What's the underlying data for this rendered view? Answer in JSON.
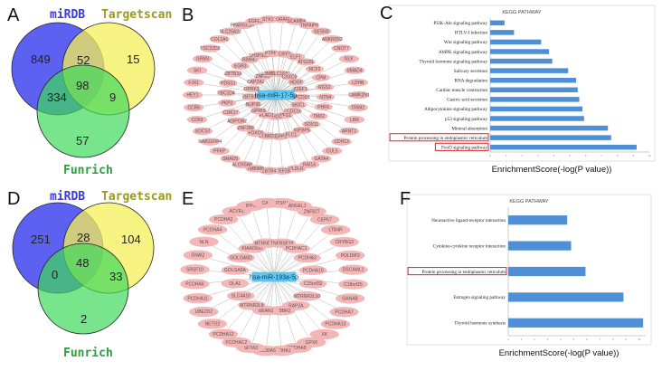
{
  "panels": {
    "A": {
      "label": "A",
      "venn": {
        "set1": "miRDB",
        "set2": "Targetscan",
        "set3": "Funrich",
        "only1": "849",
        "only2": "15",
        "only3": "57",
        "n12": "52",
        "n13": "334",
        "n23": "9",
        "n123": "98",
        "colors": {
          "set1": "#4b50f0",
          "set2": "#f5f05a",
          "set3": "#3fd85a"
        }
      }
    },
    "B": {
      "label": "B",
      "center": "hsa-miR-17-5p",
      "nodes": [
        "APCDD1",
        "SKIC1",
        "CCDC16",
        "WFS1",
        "RHOC",
        "PLAG1",
        "GPRIS",
        "NUP35",
        "ZBTB18",
        "OPRK3",
        "CAPZA2",
        "ZNFX1",
        "L3MBTL3",
        "SLC16A9",
        "CXXC5",
        "HDGF",
        "ZZEF1",
        "NTN4",
        "PHF6",
        "TMX2",
        "SOX11",
        "IGFBP5",
        "KLC1",
        "SGPP2",
        "CYBRD1",
        "FOXO1",
        "ZNF280",
        "ADIPOR2",
        "CDK17",
        "PKP2",
        "TBC1D4",
        "PDSS1",
        "ZBTB33",
        "EGR3",
        "RBM47",
        "SH3PXD2A",
        "PTPN4",
        "CRY2",
        "ELF1",
        "ATG16L",
        "NCF2",
        "CPM",
        "RGS1",
        "CAMK2N1",
        "TRIM2",
        "LBR",
        "ARNT2",
        "CDH13",
        "CUL5",
        "GATA4",
        "RAI14",
        "VLDLR",
        "MEF2B",
        "ZBTB4",
        "TMBIM6",
        "ALOX5AP",
        "SMAD5",
        "PFKP",
        "RAB11FIP4",
        "SOCS7",
        "CD59",
        "CCR6",
        "HEY1",
        "FJX1",
        "SKI",
        "GRM3",
        "TSC22D2",
        "COL1A1",
        "SLC25A22",
        "PPARGC1A",
        "EGFL6",
        "STK11",
        "ORAI2",
        "SCAMP4",
        "TNFAIP8",
        "SESN3",
        "ANKRD52",
        "CNOT7",
        "NLK",
        "SMAD4",
        "LDHB"
      ],
      "colors": {
        "edge": "#9a9a9a",
        "center": "#5bc8f5"
      }
    },
    "C": {
      "label": "C",
      "kegg_title": "KEGG PATHWAY",
      "xlabel": "EnrichmentScore(-log(P value))",
      "highlight_color": "#e02020",
      "bar_color": "#4f8fd6"
    },
    "D": {
      "label": "D",
      "venn": {
        "set1": "miRDB",
        "set2": "Targetscan",
        "set3": "Funrich",
        "only1": "251",
        "only2": "104",
        "only3": "2",
        "n12": "28",
        "n13": "0",
        "n23": "33",
        "n123": "48",
        "colors": {
          "set1": "#4b50f0",
          "set2": "#f5f05a",
          "set3": "#3fd85a"
        }
      }
    },
    "E": {
      "label": "E",
      "center": "hsa-miR-193a-5p",
      "nodes": [
        "C15orf32",
        "MTRNR2L10",
        "RAP2A",
        "GABBR2",
        "BEAN1",
        "MTRNR2L8",
        "SLC4A10",
        "OLA1",
        "GOLGA6A",
        "GOLGA6D",
        "KIAA0100",
        "MTRNR2L1",
        "TNFRSF19",
        "PCDHAC1",
        "PCDHA3",
        "PCDHA10",
        "C18orf25",
        "GANAB",
        "PCDHA7",
        "PCDHA13",
        "XK",
        "GPX8",
        "PCDHA9",
        "PCDHA1",
        "SLC30A5",
        "SFTA3",
        "PCDHAC2",
        "PCDHA12",
        "NETO2",
        "UBE2D2",
        "PCDHA11",
        "PCDHA6",
        "SRSF10",
        "GNAQ",
        "NLN",
        "PCDHA4",
        "PCDHA2",
        "ACVR1",
        "IPPK",
        "CA7",
        "ITSN1",
        "ANGEL1",
        "ZNF827",
        "CEP57",
        "LTB4R",
        "CRYBG3",
        "POLDIP2",
        "DSCAML1"
      ],
      "colors": {
        "edge": "#9a9a9a",
        "center": "#5bc8f5"
      }
    },
    "F": {
      "label": "F",
      "kegg_title": "KEGG PATHWAY",
      "xlabel": "EnrichmentScore(-log(P value))",
      "highlight_color": "#e02020",
      "bar_color": "#4f8fd6"
    }
  },
  "chart_data": [
    {
      "type": "bar",
      "panel": "C",
      "title": "KEGG PATHWAY",
      "xlabel": "EnrichmentScore(-log(P value))",
      "orientation": "horizontal",
      "categories": [
        "PI3K-Akt signaling pathway",
        "HTLV-I infection",
        "Wnt signaling pathway",
        "AMPK signaling pathway",
        "Thyroid hormone signaling pathway",
        "Salivary secretion",
        "RNA degradation",
        "Cardiac muscle contraction",
        "Gastric acid secretion",
        "Adipocytokine signaling pathway",
        "p53 signaling pathway",
        "Mineral absorption",
        "Protein processing in endoplasmic reticulum",
        "FoxO signaling pathway"
      ],
      "values": [
        0.9,
        1.5,
        3.2,
        3.7,
        3.9,
        4.9,
        5.4,
        5.5,
        5.6,
        5.8,
        5.9,
        7.4,
        7.6,
        9.2
      ],
      "highlighted": [
        "Protein processing in endoplasmic reticulum",
        "FoxO signaling pathway"
      ],
      "xlim": [
        0,
        10
      ]
    },
    {
      "type": "bar",
      "panel": "F",
      "title": "KEGG PATHWAY",
      "xlabel": "EnrichmentScore(-log(P value))",
      "orientation": "horizontal",
      "categories": [
        "Neuroactive ligand-receptor interaction",
        "Cytokine-cytokine receptor interaction",
        "Protein processing in endoplasmic reticulum",
        "Estrogen signaling pathway",
        "Thyroid hormone synthesis"
      ],
      "values": [
        4.5,
        4.8,
        5.9,
        8.8,
        10.3
      ],
      "highlighted": [
        "Protein processing in endoplasmic reticulum"
      ],
      "xlim": [
        0,
        10.5
      ]
    }
  ]
}
